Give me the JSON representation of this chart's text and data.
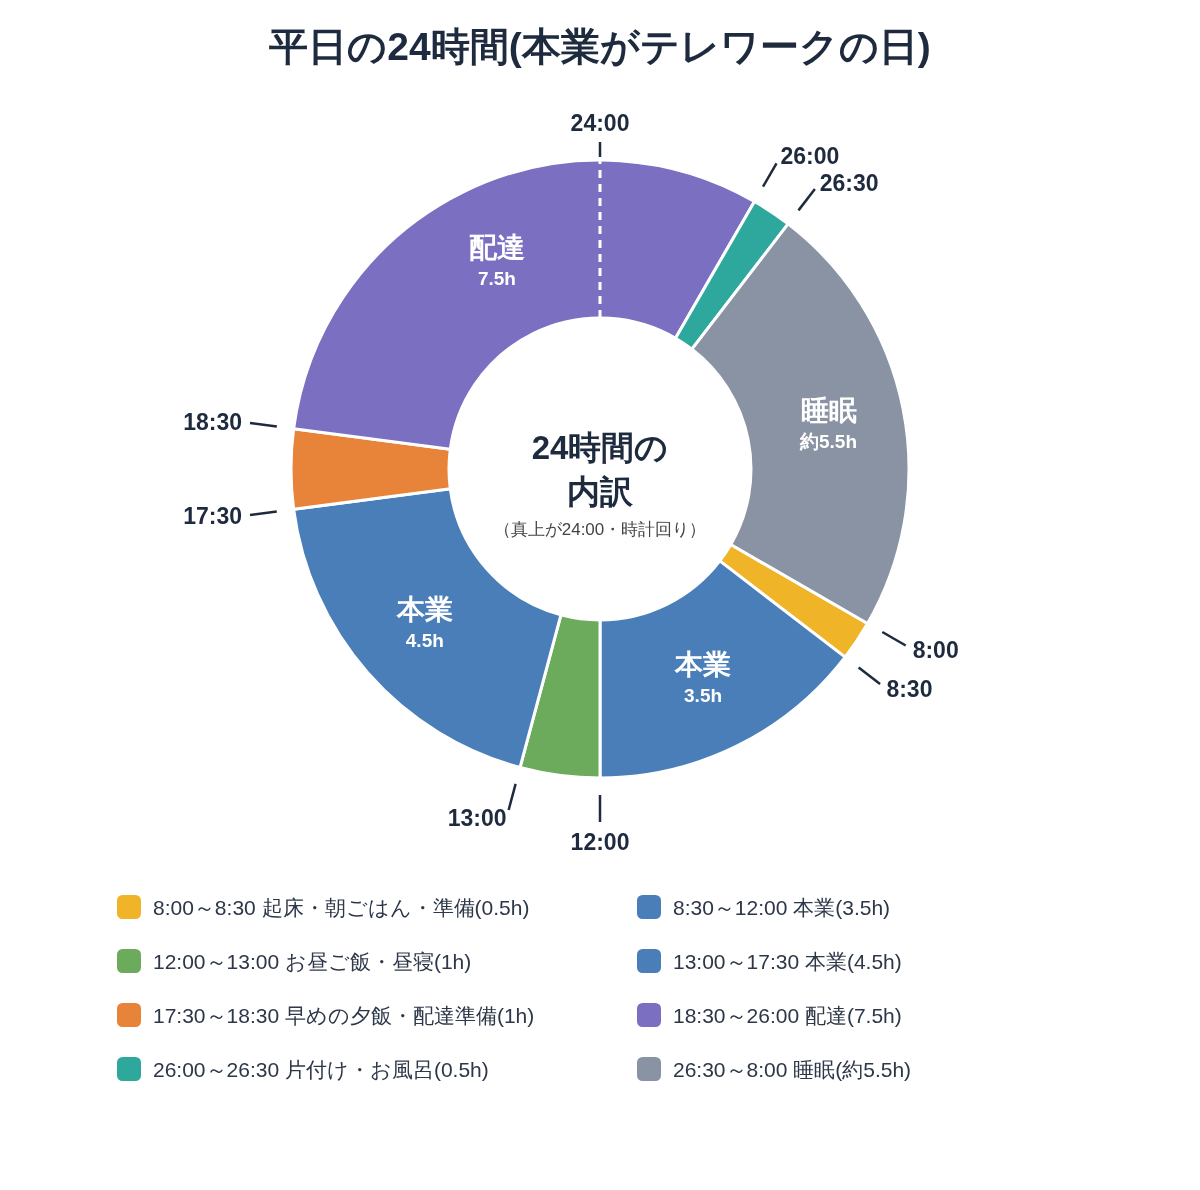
{
  "chart_data": {
    "type": "donut",
    "title": "平日の24時間(本業がテレワークの日)",
    "categories": [
      "8:00～8:30 起床・朝ごはん・準備(0.5h)",
      "8:30～12:00 本業(3.5h)",
      "12:00～13:00 お昼ご飯・昼寝(1h)",
      "13:00～17:30 本業(4.5h)",
      "17:30～18:30 早めの夕飯・配達準備(1h)",
      "18:30～26:00 配達(7.5h)",
      "26:00～26:30 片付け・お風呂(0.5h)",
      "26:30～8:00 睡眠(約5.5h)"
    ],
    "values": [
      0.5,
      3.5,
      1,
      4.5,
      1,
      7.5,
      0.5,
      5.5
    ],
    "colors": [
      "#f0b429",
      "#4a7eb9",
      "#6bab5b",
      "#4a7eb9",
      "#e8833a",
      "#7b6fc2",
      "#2ea89d",
      "#8a93a4"
    ],
    "value_labels": [
      null,
      [
        "本業",
        "3.5h"
      ],
      null,
      [
        "本業",
        "4.5h"
      ],
      null,
      [
        "配達",
        "7.5h"
      ],
      null,
      [
        "睡眠",
        "約5.5h"
      ]
    ],
    "annotations": [
      "24時間の内訳",
      "（真上が24:00・時計回り）",
      "24:00",
      "26:00",
      "26:30",
      "8:00",
      "8:30",
      "12:00",
      "13:00",
      "17:30",
      "18:30"
    ],
    "legend": "bottom"
  }
}
